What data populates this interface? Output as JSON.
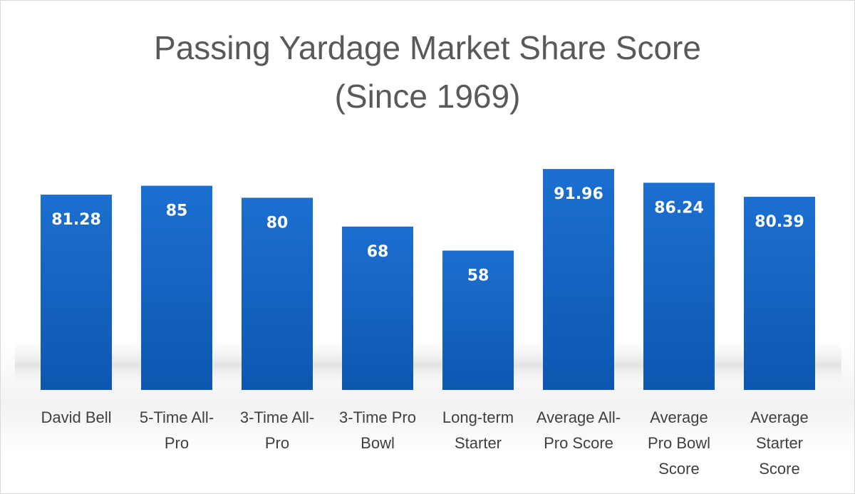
{
  "chart_data": {
    "type": "bar",
    "title_lines": [
      "Passing Yardage Market Share Score",
      "(Since 1969)"
    ],
    "categories": [
      [
        "David Bell"
      ],
      [
        "5-Time All-",
        "Pro"
      ],
      [
        "3-Time All-",
        "Pro"
      ],
      [
        "3-Time Pro",
        "Bowl"
      ],
      [
        "Long-term",
        "Starter"
      ],
      [
        "Average All-",
        "Pro Score"
      ],
      [
        "Average",
        "Pro Bowl",
        "Score"
      ],
      [
        "Average",
        "Starter",
        "Score"
      ]
    ],
    "values": [
      81.28,
      85,
      80,
      68,
      58,
      91.96,
      86.24,
      80.39
    ],
    "value_labels": [
      "81.28",
      "85",
      "80",
      "68",
      "58",
      "91.96",
      "86.24",
      "80.39"
    ],
    "ylim": [
      0,
      100
    ],
    "grid": false,
    "legend": "none",
    "bar_color": "#1565c0"
  }
}
